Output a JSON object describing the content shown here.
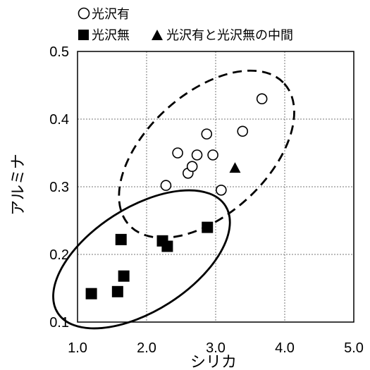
{
  "chart_data": {
    "type": "scatter",
    "title": "",
    "xlabel": "シリカ",
    "ylabel": "アルミナ",
    "xlim": [
      1.0,
      5.0
    ],
    "ylim": [
      0.1,
      0.5
    ],
    "xticks": [
      "1.0",
      "2.0",
      "3.0",
      "4.0",
      "5.0"
    ],
    "yticks": [
      "0.1",
      "0.2",
      "0.3",
      "0.4",
      "0.5"
    ],
    "grid": true,
    "legend_position": "top-left",
    "legend": [
      {
        "symbol": "○",
        "label": "光沢有"
      },
      {
        "symbol": "■",
        "label": "光沢無"
      },
      {
        "symbol": "▲",
        "label": "光沢有と光沢無の中間"
      }
    ],
    "series": [
      {
        "name": "光沢有",
        "marker": "open-circle",
        "points": [
          {
            "x": 2.28,
            "y": 0.302
          },
          {
            "x": 2.45,
            "y": 0.35
          },
          {
            "x": 2.6,
            "y": 0.32
          },
          {
            "x": 2.66,
            "y": 0.33
          },
          {
            "x": 2.73,
            "y": 0.347
          },
          {
            "x": 2.87,
            "y": 0.378
          },
          {
            "x": 2.96,
            "y": 0.347
          },
          {
            "x": 3.08,
            "y": 0.295
          },
          {
            "x": 3.39,
            "y": 0.382
          },
          {
            "x": 3.67,
            "y": 0.43
          }
        ]
      },
      {
        "name": "光沢無",
        "marker": "filled-square",
        "points": [
          {
            "x": 1.2,
            "y": 0.142
          },
          {
            "x": 1.58,
            "y": 0.145
          },
          {
            "x": 1.63,
            "y": 0.222
          },
          {
            "x": 1.67,
            "y": 0.168
          },
          {
            "x": 2.23,
            "y": 0.22
          },
          {
            "x": 2.3,
            "y": 0.212
          },
          {
            "x": 2.88,
            "y": 0.24
          }
        ]
      },
      {
        "name": "光沢有と光沢無の中間",
        "marker": "filled-triangle",
        "points": [
          {
            "x": 3.28,
            "y": 0.328
          }
        ]
      }
    ],
    "groupings": [
      {
        "style": "dashed",
        "encloses": "光沢有"
      },
      {
        "style": "solid",
        "encloses": "光沢無"
      }
    ]
  }
}
